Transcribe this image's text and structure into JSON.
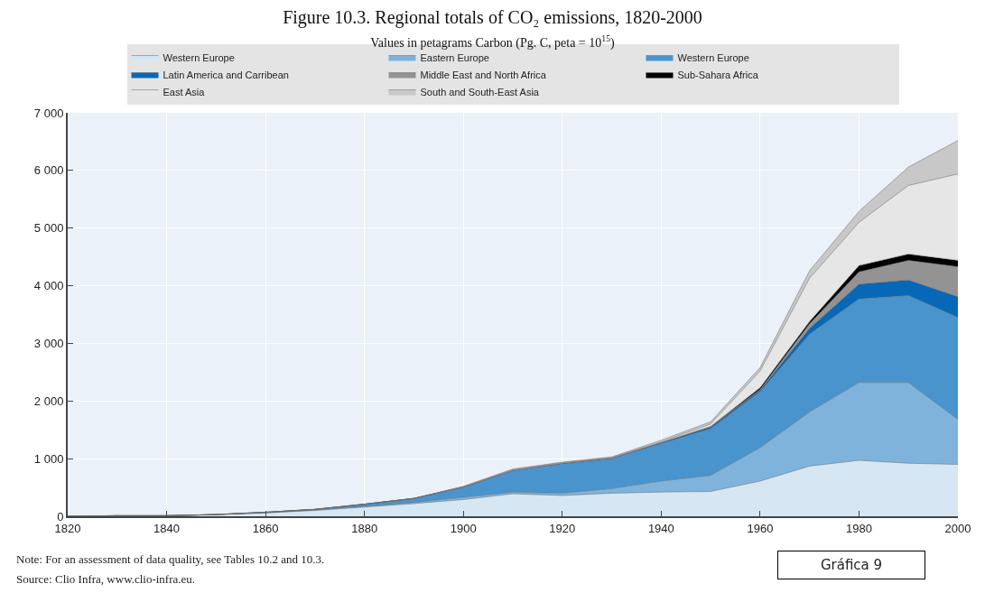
{
  "chart_data": {
    "type": "area",
    "stacked": true,
    "title": "Figure 10.3. Regional totals of CO₂ emissions, 1820-2000",
    "subtitle": "Values in petagrams Carbon (Pg. C, peta = 10$^{15}$)",
    "x": [
      1820,
      1830,
      1840,
      1850,
      1860,
      1870,
      1880,
      1890,
      1900,
      1910,
      1920,
      1930,
      1940,
      1950,
      1960,
      1970,
      1980,
      1990,
      2000
    ],
    "series": [
      {
        "name": "Western Europe",
        "color": "#d6e7f3",
        "values": [
          0,
          10,
          10,
          30,
          60,
          100,
          160,
          220,
          290,
          390,
          360,
          400,
          420,
          430,
          610,
          870,
          970,
          920,
          900
        ]
      },
      {
        "name": "Eastern Europe",
        "color": "#7fb3db",
        "values": [
          0,
          0,
          0,
          0,
          0,
          10,
          10,
          20,
          40,
          30,
          40,
          80,
          190,
          280,
          580,
          940,
          1350,
          1400,
          780
        ]
      },
      {
        "name": "Western Europe",
        "color": "#4a94cd",
        "values": [
          0,
          0,
          0,
          0,
          10,
          10,
          40,
          70,
          170,
          370,
          510,
          520,
          650,
          810,
          970,
          1350,
          1450,
          1510,
          1770
        ]
      },
      {
        "name": "Latin America and Carribean",
        "color": "#0868b8",
        "values": [
          0,
          0,
          0,
          0,
          0,
          0,
          0,
          0,
          10,
          10,
          10,
          10,
          20,
          30,
          30,
          100,
          260,
          270,
          360
        ]
      },
      {
        "name": "Middle East and North Africa",
        "color": "#939393",
        "values": [
          0,
          0,
          0,
          0,
          0,
          0,
          0,
          0,
          0,
          0,
          0,
          0,
          0,
          10,
          10,
          80,
          210,
          340,
          520
        ]
      },
      {
        "name": "Sub-Sahara Africa",
        "color": "#000000",
        "values": [
          0,
          0,
          0,
          0,
          0,
          0,
          0,
          0,
          0,
          0,
          0,
          0,
          0,
          0,
          30,
          40,
          110,
          110,
          110
        ]
      },
      {
        "name": "East Asia",
        "color": "#e6e6e6",
        "values": [
          0,
          0,
          0,
          0,
          0,
          0,
          0,
          0,
          0,
          10,
          10,
          10,
          10,
          40,
          290,
          750,
          750,
          1190,
          1500
        ]
      },
      {
        "name": "South and South-East Asia",
        "color": "#c8c8c8",
        "values": [
          0,
          0,
          0,
          0,
          0,
          0,
          0,
          0,
          10,
          10,
          10,
          10,
          30,
          40,
          60,
          130,
          190,
          320,
          580
        ]
      }
    ],
    "xlim": [
      1820,
      2000
    ],
    "xticks": [
      1820,
      1840,
      1860,
      1880,
      1900,
      1920,
      1940,
      1960,
      1980,
      2000
    ],
    "ylim": [
      0,
      7000
    ],
    "yticks": [
      0,
      {
        "value": 1000,
        "label": "1 000"
      },
      {
        "value": 2000,
        "label": "2 000"
      },
      {
        "value": 3000,
        "label": "3 000"
      },
      {
        "value": 4000,
        "label": "4 000"
      },
      {
        "value": 5000,
        "label": "5 000"
      },
      {
        "value": 6000,
        "label": "6 000"
      },
      {
        "value": 7000,
        "label": "7 000"
      }
    ],
    "grid": true,
    "legend": "top",
    "marker": "none",
    "annotations": [
      "Note: For an assessment of data quality, see Tables 10.2 and 10.3.",
      "Source: Clio Infra, www.clio-infra.eu.",
      "Gráfica 9"
    ]
  }
}
